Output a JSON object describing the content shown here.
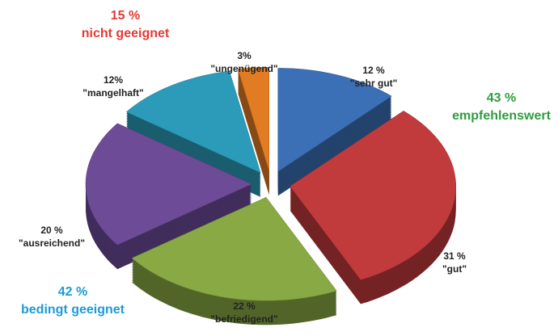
{
  "chart_data": {
    "type": "pie",
    "categories": [
      "\"sehr gut\"",
      "\"gut\"",
      "\"befriedigend\"",
      "\"ausreichend\"",
      "\"mangelhaft\"",
      "\"ungenügend\""
    ],
    "values": [
      12,
      31,
      22,
      20,
      12,
      3
    ],
    "value_labels": [
      "12 %",
      "31 %",
      "22 %",
      "20 %",
      "12%",
      "3%"
    ],
    "colors": [
      "#3b6fb6",
      "#c23b3c",
      "#88a944",
      "#6d4b97",
      "#2b9bb9",
      "#e27c23"
    ],
    "annotations": [
      {
        "value": "15 %",
        "text": "nicht geeignet",
        "color": "#e53935"
      },
      {
        "value": "43 %",
        "text": "empfehlenswert",
        "color": "#2e9e3e"
      },
      {
        "value": "42 %",
        "text": "bedingt geeignet",
        "color": "#1e9ad6"
      }
    ]
  }
}
